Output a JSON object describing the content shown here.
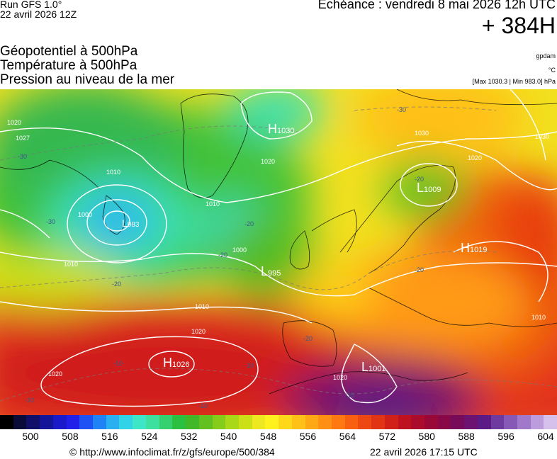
{
  "header": {
    "run": "Run GFS 1.0°",
    "run_date": "22 avril 2026 12Z",
    "echeance": "Echéance : vendredi 8 mai 2026 12h UTC",
    "lead": "+ 384H",
    "titles": [
      "Géopotentiel à 500hPa",
      "Température à 500hPa",
      "Pression au niveau de la mer"
    ],
    "unit_gpdam": "gpdam",
    "unit_c": "°C",
    "minmax": "[Max 1030.3 | Min 983.0] hPa"
  },
  "map": {
    "pressure_centers": [
      {
        "type": "H",
        "value": "1030"
      },
      {
        "type": "H",
        "value": "1019"
      },
      {
        "type": "H",
        "value": "1026"
      },
      {
        "type": "L",
        "value": "1009"
      },
      {
        "type": "L",
        "value": "995"
      },
      {
        "type": "L",
        "value": "1001"
      },
      {
        "type": "L",
        "value": "983"
      }
    ],
    "isobar_labels": [
      "1010",
      "1000",
      "1010",
      "1000",
      "1020",
      "1010",
      "1020",
      "1020",
      "1030",
      "1020",
      "1010",
      "1010",
      "1030",
      "1020",
      "1020",
      "1027"
    ],
    "temp_labels": [
      "-30",
      "-30",
      "-20",
      "-20",
      "-20",
      "-20",
      "-20",
      "-10",
      "-10",
      "-10",
      "-10",
      "-10",
      "-20",
      "-30"
    ]
  },
  "scale": {
    "colors": [
      "#000000",
      "#0b0b3a",
      "#10106a",
      "#15159a",
      "#1a1aca",
      "#2020e8",
      "#1f52f5",
      "#1f82f5",
      "#2ab0f0",
      "#31d4e6",
      "#3ee6c8",
      "#3ee0a0",
      "#35d070",
      "#2cc040",
      "#40b828",
      "#62c020",
      "#86cc1a",
      "#a8d818",
      "#cce018",
      "#eee820",
      "#fff020",
      "#ffd81a",
      "#ffc018",
      "#ffa816",
      "#ff9014",
      "#ff7812",
      "#f86010",
      "#ee4812",
      "#e03414",
      "#d02018",
      "#be1220",
      "#ac0c2c",
      "#9a0838",
      "#880848",
      "#780a5a",
      "#6c1270",
      "#5c1a86",
      "#6e3aa0",
      "#8858b6",
      "#a278ca",
      "#bc9cdc",
      "#d6c0ec"
    ],
    "labels": [
      "500",
      "508",
      "516",
      "524",
      "532",
      "540",
      "548",
      "556",
      "564",
      "572",
      "580",
      "588",
      "596",
      "604"
    ]
  },
  "footer": {
    "url": "© http://www.infoclimat.fr/z/gfs/europe/500/384",
    "generated": "22 avril 2026 17:15 UTC"
  }
}
